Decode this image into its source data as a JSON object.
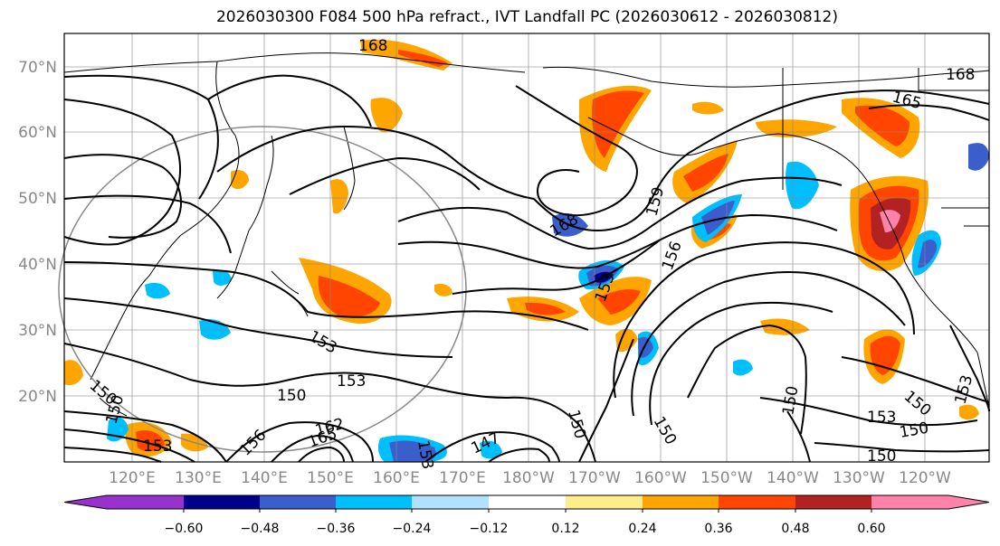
{
  "title": "2026030300 F084 500 hPa refract., IVT Landfall PC (2026030612 - 2026030812)",
  "lat_labels": [
    "70°N",
    "60°N",
    "50°N",
    "40°N",
    "30°N",
    "20°N"
  ],
  "lon_labels": [
    "120°E",
    "130°E",
    "140°E",
    "150°E",
    "160°E",
    "170°E",
    "180°W",
    "170°W",
    "160°W",
    "150°W",
    "140°W",
    "130°W",
    "120°W"
  ],
  "colorbar": {
    "ticks": [
      "−0.60",
      "−0.48",
      "−0.36",
      "−0.24",
      "−0.12",
      "0.12",
      "0.24",
      "0.36",
      "0.48",
      "0.60"
    ],
    "colors": [
      "#9932cc",
      "#00008b",
      "#3a5fcd",
      "#00bfff",
      "#b0e2ff",
      "#ffffff",
      "#ffec8b",
      "#ffa500",
      "#ff4500",
      "#b22222",
      "#ff82ab"
    ]
  },
  "contour_labels": [
    "168",
    "165",
    "168",
    "168",
    "159",
    "156",
    "153",
    "153",
    "153",
    "150",
    "150",
    "150",
    "150",
    "150",
    "150",
    "153",
    "150",
    "150",
    "153",
    "147",
    "162",
    "165",
    "156",
    "153",
    "150",
    "153"
  ],
  "colors": {
    "axis": "#000000",
    "grid": "#888888",
    "label_gray": "#888888"
  }
}
